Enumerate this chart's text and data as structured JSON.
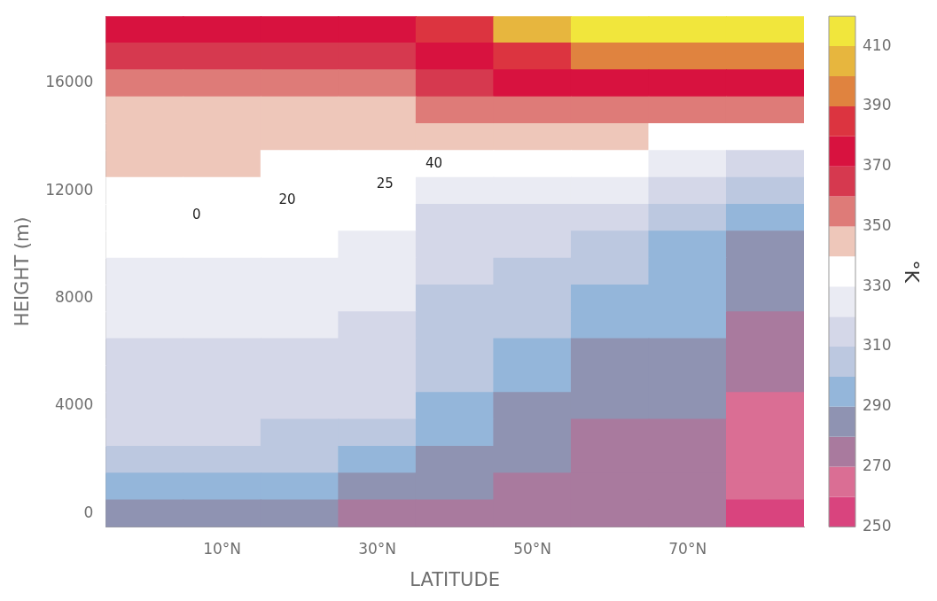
{
  "chart_data": {
    "type": "heatmap",
    "xlabel": "LATITUDE",
    "ylabel": "HEIGHT (m)",
    "clabel": "°K",
    "categories": [
      null,
      "10°N",
      null,
      "30°N",
      null,
      "50°N",
      null,
      "70°N",
      null
    ],
    "y_categories": [
      null,
      null,
      "16000",
      null,
      null,
      null,
      "12000",
      null,
      null,
      null,
      "8000",
      null,
      null,
      null,
      "4000",
      null,
      null,
      null,
      "0"
    ],
    "cells": [
      [
        375,
        375,
        375,
        375,
        385,
        405,
        415,
        415,
        415
      ],
      [
        365,
        365,
        365,
        365,
        375,
        385,
        395,
        395,
        395
      ],
      [
        355,
        355,
        355,
        355,
        365,
        375,
        375,
        375,
        375
      ],
      [
        345,
        345,
        345,
        345,
        355,
        355,
        355,
        355,
        355
      ],
      [
        345,
        345,
        345,
        345,
        345,
        345,
        345,
        335,
        335
      ],
      [
        345,
        345,
        335,
        335,
        335,
        335,
        335,
        325,
        315
      ],
      [
        335,
        335,
        335,
        335,
        325,
        325,
        325,
        315,
        305
      ],
      [
        335,
        335,
        335,
        335,
        315,
        315,
        315,
        305,
        295
      ],
      [
        335,
        335,
        335,
        325,
        315,
        315,
        305,
        295,
        285
      ],
      [
        325,
        325,
        325,
        325,
        315,
        305,
        305,
        295,
        285
      ],
      [
        325,
        325,
        325,
        325,
        305,
        305,
        295,
        295,
        285
      ],
      [
        325,
        325,
        325,
        315,
        305,
        305,
        295,
        295,
        275
      ],
      [
        315,
        315,
        315,
        315,
        305,
        295,
        285,
        285,
        275
      ],
      [
        315,
        315,
        315,
        315,
        305,
        295,
        285,
        285,
        275
      ],
      [
        315,
        315,
        315,
        315,
        295,
        285,
        285,
        285,
        265
      ],
      [
        315,
        315,
        305,
        305,
        295,
        285,
        275,
        275,
        265
      ],
      [
        305,
        305,
        305,
        295,
        285,
        285,
        275,
        275,
        265
      ],
      [
        295,
        295,
        295,
        285,
        285,
        275,
        275,
        275,
        265
      ],
      [
        285,
        285,
        285,
        275,
        275,
        275,
        275,
        275,
        255
      ]
    ],
    "colors": [
      "#d9447e",
      "#da6e94",
      "#a97a9e",
      "#8f93b2",
      "#94b6da",
      "#bcc8e0",
      "#d4d7e8",
      "#eaebf3",
      "#ffffff",
      "#eec7ba",
      "#de7b78",
      "#d6394f",
      "#d8123f",
      "#dc3440",
      "#e0833f",
      "#e7b63e",
      "#f1e63c"
    ],
    "clim": [
      250,
      420
    ],
    "cticks": [
      250,
      270,
      290,
      310,
      330,
      350,
      370,
      390,
      410
    ],
    "annotations": [
      "0",
      "20",
      "25",
      "40"
    ]
  }
}
